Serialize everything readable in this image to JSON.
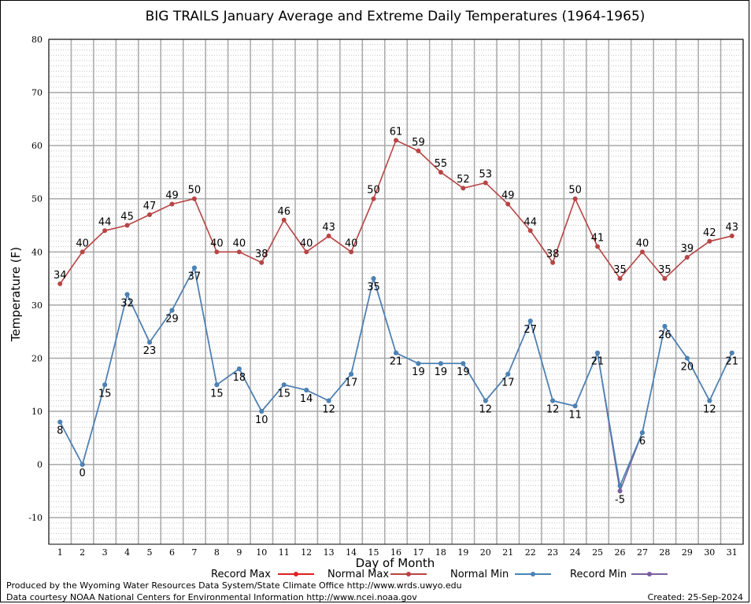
{
  "chart_data": {
    "type": "line",
    "title": "BIG TRAILS January Average and Extreme Daily Temperatures (1964-1965)",
    "xlabel": "Day of Month",
    "ylabel": "Temperature (F)",
    "x": [
      1,
      2,
      3,
      4,
      5,
      6,
      7,
      8,
      9,
      10,
      11,
      12,
      13,
      14,
      15,
      16,
      17,
      18,
      19,
      20,
      21,
      22,
      23,
      24,
      25,
      26,
      27,
      28,
      29,
      30,
      31
    ],
    "ylim": [
      -15,
      80
    ],
    "yticks": [
      -10,
      0,
      10,
      20,
      30,
      40,
      50,
      60,
      70,
      80
    ],
    "grid": true,
    "series": [
      {
        "name": "Record Max",
        "color": "#e02020",
        "values": [
          34,
          40,
          44,
          45,
          47,
          49,
          50,
          40,
          40,
          38,
          46,
          40,
          43,
          40,
          50,
          61,
          59,
          55,
          52,
          53,
          49,
          44,
          38,
          50,
          41,
          35,
          40,
          35,
          39,
          42,
          43
        ]
      },
      {
        "name": "Normal Max",
        "color": "#b84444",
        "values": [
          34,
          40,
          44,
          45,
          47,
          49,
          50,
          40,
          40,
          38,
          46,
          40,
          43,
          40,
          50,
          61,
          59,
          55,
          52,
          53,
          49,
          44,
          38,
          50,
          41,
          35,
          40,
          35,
          39,
          42,
          43
        ],
        "labels": [
          "34",
          "40",
          "44",
          "45",
          "47",
          "49",
          "50",
          "40",
          "40",
          "38",
          "46",
          "40",
          "43",
          "40",
          "50",
          "61",
          "59",
          "55",
          "52",
          "53",
          "49",
          "44",
          "38",
          "50",
          "41",
          "35",
          "40",
          "35",
          "39",
          "42",
          "43"
        ]
      },
      {
        "name": "Normal Min",
        "color": "#4a82b4",
        "values": [
          8,
          0,
          15,
          32,
          23,
          29,
          37,
          15,
          18,
          10,
          15,
          14,
          12,
          17,
          35,
          21,
          19,
          19,
          19,
          12,
          17,
          27,
          12,
          11,
          21,
          -4,
          6,
          26,
          20,
          12,
          21
        ]
      },
      {
        "name": "Record Min",
        "color": "#7a5ea0",
        "values": [
          8,
          0,
          15,
          32,
          23,
          29,
          37,
          15,
          18,
          10,
          15,
          14,
          12,
          17,
          35,
          21,
          19,
          19,
          19,
          12,
          17,
          27,
          12,
          11,
          21,
          -5,
          6,
          26,
          20,
          12,
          21
        ],
        "labels": [
          "8",
          "0",
          "15",
          "32",
          "23",
          "29",
          "37",
          "15",
          "18",
          "10",
          "15",
          "14",
          "12",
          "17",
          "35",
          "21",
          "19",
          "19",
          "19",
          "12",
          "17",
          "27",
          "12",
          "11",
          "21",
          "-5",
          "6",
          "26",
          "20",
          "12",
          "21"
        ]
      }
    ],
    "legend_position": "bottom"
  },
  "footer": {
    "produced_by": "Produced by the Wyoming Water Resources Data System/State Climate Office http://www.wrds.uwyo.edu",
    "courtesy": "Data courtesy NOAA National Centers for Environmental Information http://www.ncei.noaa.gov",
    "created": "Created:  25-Sep-2024"
  }
}
